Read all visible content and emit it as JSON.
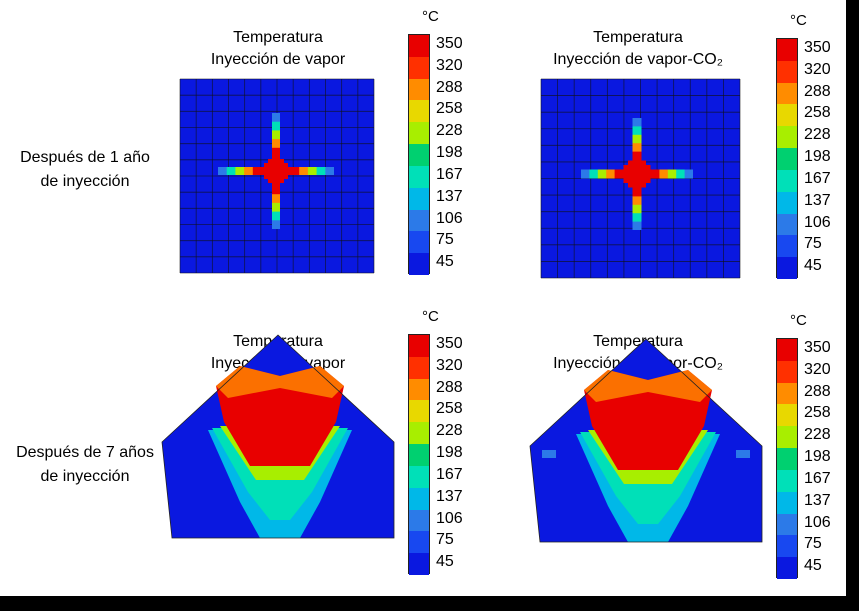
{
  "row_labels": [
    {
      "line1": "Después de 1 año",
      "line2": "de inyección"
    },
    {
      "line1": "Después de 7 años",
      "line2": "de inyección"
    }
  ],
  "panels": [
    {
      "title1": "Temperatura",
      "title2": "Inyección de vapor"
    },
    {
      "title1": "Temperatura",
      "title2": "Inyección de vapor-CO₂"
    },
    {
      "title1": "Temperatura",
      "title2": "Inyección de vapor"
    },
    {
      "title1": "Temperatura",
      "title2": "Inyección de vapor-CO₂"
    }
  ],
  "legend": {
    "unit": "°C",
    "labels": [
      "350",
      "320",
      "288",
      "258",
      "228",
      "198",
      "167",
      "137",
      "106",
      "75",
      "45"
    ],
    "colors": [
      "#e80000",
      "#ff3000",
      "#ff8c00",
      "#e8d800",
      "#a8ee00",
      "#00d070",
      "#00e0b8",
      "#00b8e8",
      "#2c7ae8",
      "#1848f0",
      "#0a18e0"
    ]
  },
  "chart_data": {
    "type": "heatmap",
    "variable": "Temperatura",
    "unit": "°C",
    "scale": [
      350,
      320,
      288,
      258,
      228,
      198,
      167,
      137,
      106,
      75,
      45
    ],
    "maps": [
      {
        "time": "Después de 1 año de inyección",
        "case": "Inyección de vapor",
        "pattern": "cross",
        "max_level": 350,
        "background_level": 45
      },
      {
        "time": "Después de 1 año de inyección",
        "case": "Inyección de vapor-CO₂",
        "pattern": "cross",
        "max_level": 350,
        "background_level": 45
      },
      {
        "time": "Después de 7 años de inyección",
        "case": "Inyección de vapor",
        "pattern": "pentagon",
        "max_level": 350,
        "background_level": 45
      },
      {
        "time": "Después de 7 años de inyección",
        "case": "Inyección de vapor-CO₂",
        "pattern": "pentagon",
        "max_level": 350,
        "background_level": 45
      }
    ]
  }
}
